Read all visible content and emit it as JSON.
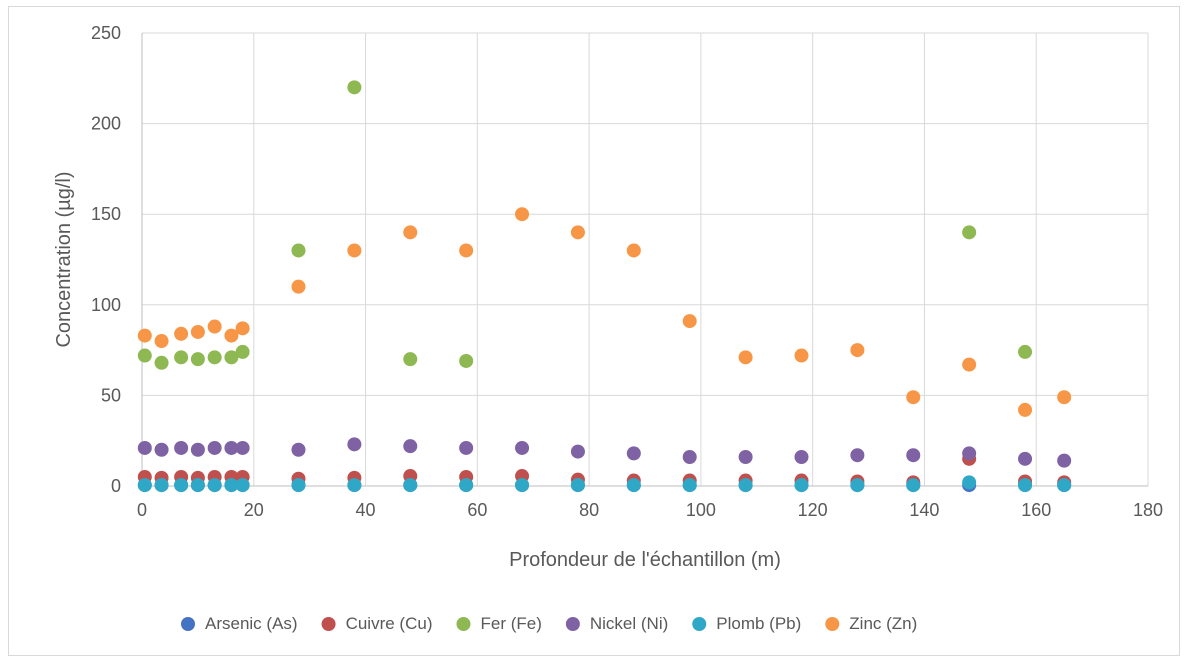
{
  "chart_data": {
    "type": "scatter",
    "title": "",
    "xlabel": "Profondeur de l'échantillon (m)",
    "ylabel": "Concentration (µg/l)",
    "xlim": [
      0,
      180
    ],
    "ylim": [
      0,
      250
    ],
    "x_ticks": [
      0,
      20,
      40,
      60,
      80,
      100,
      120,
      140,
      160,
      180
    ],
    "y_ticks": [
      0,
      50,
      100,
      150,
      200,
      250
    ],
    "grid": true,
    "legend_position": "bottom",
    "series": [
      {
        "name": "Arsenic (As)",
        "color": "#4472C4",
        "points": [
          [
            0.5,
            0.5
          ],
          [
            3.5,
            0.5
          ],
          [
            7,
            0.5
          ],
          [
            10,
            0.5
          ],
          [
            13,
            0.5
          ],
          [
            16,
            0.5
          ],
          [
            18,
            0.5
          ],
          [
            28,
            0.5
          ],
          [
            38,
            0.5
          ],
          [
            48,
            0.5
          ],
          [
            58,
            0.5
          ],
          [
            68,
            0.5
          ],
          [
            78,
            0.5
          ],
          [
            88,
            0.5
          ],
          [
            98,
            0.5
          ],
          [
            108,
            0.5
          ],
          [
            118,
            0.5
          ],
          [
            128,
            0.5
          ],
          [
            138,
            0.5
          ],
          [
            148,
            0.5
          ],
          [
            158,
            0.5
          ],
          [
            165,
            0.5
          ]
        ]
      },
      {
        "name": "Cuivre (Cu)",
        "color": "#C0504D",
        "points": [
          [
            0.5,
            5
          ],
          [
            3.5,
            4.5
          ],
          [
            7,
            5
          ],
          [
            10,
            4.5
          ],
          [
            13,
            5
          ],
          [
            16,
            5
          ],
          [
            18,
            5
          ],
          [
            28,
            4
          ],
          [
            38,
            4.5
          ],
          [
            48,
            5.5
          ],
          [
            58,
            5
          ],
          [
            68,
            5.5
          ],
          [
            78,
            3.5
          ],
          [
            88,
            3
          ],
          [
            98,
            3
          ],
          [
            108,
            3
          ],
          [
            118,
            3
          ],
          [
            128,
            2.5
          ],
          [
            138,
            2
          ],
          [
            148,
            15
          ],
          [
            158,
            2.5
          ],
          [
            165,
            2
          ]
        ]
      },
      {
        "name": "Fer (Fe)",
        "color": "#8DB852",
        "points": [
          [
            0.5,
            72
          ],
          [
            3.5,
            68
          ],
          [
            7,
            71
          ],
          [
            10,
            70
          ],
          [
            13,
            71
          ],
          [
            16,
            71
          ],
          [
            18,
            74
          ],
          [
            28,
            130
          ],
          [
            38,
            220
          ],
          [
            48,
            70
          ],
          [
            58,
            69
          ],
          [
            148,
            140
          ],
          [
            158,
            74
          ]
        ]
      },
      {
        "name": "Nickel (Ni)",
        "color": "#7E62A4",
        "points": [
          [
            0.5,
            21
          ],
          [
            3.5,
            20
          ],
          [
            7,
            21
          ],
          [
            10,
            20
          ],
          [
            13,
            21
          ],
          [
            16,
            21
          ],
          [
            18,
            21
          ],
          [
            28,
            20
          ],
          [
            38,
            23
          ],
          [
            48,
            22
          ],
          [
            58,
            21
          ],
          [
            68,
            21
          ],
          [
            78,
            19
          ],
          [
            88,
            18
          ],
          [
            98,
            16
          ],
          [
            108,
            16
          ],
          [
            118,
            16
          ],
          [
            128,
            17
          ],
          [
            138,
            17
          ],
          [
            148,
            18
          ],
          [
            158,
            15
          ],
          [
            165,
            14
          ]
        ]
      },
      {
        "name": "Plomb (Pb)",
        "color": "#2FA8C7",
        "points": [
          [
            0.5,
            0.5
          ],
          [
            3.5,
            0.5
          ],
          [
            7,
            0.5
          ],
          [
            10,
            0.5
          ],
          [
            13,
            0.5
          ],
          [
            16,
            0.5
          ],
          [
            18,
            0.5
          ],
          [
            28,
            0.5
          ],
          [
            38,
            0.5
          ],
          [
            48,
            0.5
          ],
          [
            58,
            0.5
          ],
          [
            68,
            0.5
          ],
          [
            78,
            0.5
          ],
          [
            88,
            0.5
          ],
          [
            98,
            0.5
          ],
          [
            108,
            0.5
          ],
          [
            118,
            0.5
          ],
          [
            128,
            0.5
          ],
          [
            138,
            0.5
          ],
          [
            148,
            2
          ],
          [
            158,
            0.5
          ],
          [
            165,
            0.5
          ]
        ]
      },
      {
        "name": "Zinc (Zn)",
        "color": "#F79646",
        "points": [
          [
            0.5,
            83
          ],
          [
            3.5,
            80
          ],
          [
            7,
            84
          ],
          [
            10,
            85
          ],
          [
            13,
            88
          ],
          [
            16,
            83
          ],
          [
            18,
            87
          ],
          [
            28,
            110
          ],
          [
            38,
            130
          ],
          [
            48,
            140
          ],
          [
            58,
            130
          ],
          [
            68,
            150
          ],
          [
            78,
            140
          ],
          [
            88,
            130
          ],
          [
            98,
            91
          ],
          [
            108,
            71
          ],
          [
            118,
            72
          ],
          [
            128,
            75
          ],
          [
            138,
            49
          ],
          [
            148,
            67
          ],
          [
            158,
            42
          ],
          [
            165,
            49
          ]
        ]
      }
    ]
  }
}
